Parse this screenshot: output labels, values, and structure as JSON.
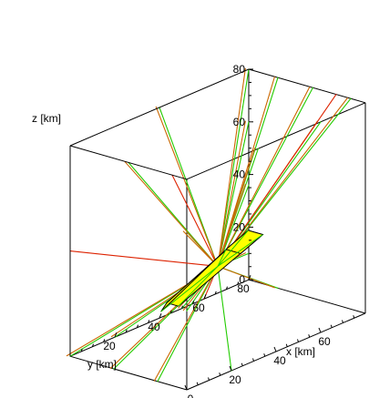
{
  "chart_data": {
    "type": "3d-line-plot",
    "title": "",
    "axes": {
      "x": {
        "label": "x [km]",
        "ticks": [
          "0",
          "20",
          "40",
          "60"
        ],
        "range": [
          0,
          80
        ]
      },
      "y": {
        "label": "y [km]",
        "ticks": [
          "20",
          "40",
          "60",
          "80"
        ],
        "range": [
          0,
          80
        ]
      },
      "z": {
        "label": "z [km]",
        "ticks": [
          "0",
          "20",
          "40",
          "60",
          "80"
        ],
        "range": [
          0,
          80
        ]
      }
    },
    "source_point": {
      "x": 40,
      "y": 40,
      "z": 26
    },
    "source_region": {
      "shape": "box",
      "fill_color": "#ffff00",
      "corners_xyz": [
        [
          72,
          18,
          26
        ],
        [
          72,
          24,
          22
        ],
        [
          18,
          62,
          26
        ],
        [
          12,
          62,
          26
        ],
        [
          18,
          68,
          20
        ]
      ]
    },
    "ray_colors": {
      "series_a": "#22dd00",
      "series_b": "#cc5500",
      "series_c": "#dd2200"
    },
    "rays": [
      {
        "color": "#22cc00",
        "end": [
          0,
          80,
          80
        ]
      },
      {
        "color": "#cc6600",
        "end": [
          0,
          80,
          80
        ]
      },
      {
        "color": "#22cc00",
        "end": [
          0,
          60,
          80
        ]
      },
      {
        "color": "#cc6600",
        "end": [
          0,
          60,
          80
        ]
      },
      {
        "color": "#22cc00",
        "end": [
          0,
          36,
          80
        ]
      },
      {
        "color": "#cc6600",
        "end": [
          0,
          36,
          80
        ]
      },
      {
        "color": "#22cc00",
        "end": [
          0,
          10,
          80
        ]
      },
      {
        "color": "#cc6600",
        "end": [
          0,
          10,
          80
        ]
      },
      {
        "color": "#22cc00",
        "end": [
          20,
          0,
          80
        ]
      },
      {
        "color": "#cc6600",
        "end": [
          20,
          0,
          80
        ]
      },
      {
        "color": "#22cc00",
        "end": [
          48,
          0,
          80
        ]
      },
      {
        "color": "#cc6600",
        "end": [
          48,
          0,
          80
        ]
      },
      {
        "color": "#22cc00",
        "end": [
          80,
          0,
          60
        ]
      },
      {
        "color": "#cc6600",
        "end": [
          80,
          0,
          60
        ]
      },
      {
        "color": "#22cc00",
        "end": [
          80,
          0,
          30
        ]
      },
      {
        "color": "#cc6600",
        "end": [
          80,
          0,
          30
        ]
      },
      {
        "color": "#22cc00",
        "end": [
          80,
          20,
          0
        ]
      },
      {
        "color": "#cc6600",
        "end": [
          80,
          20,
          0
        ]
      },
      {
        "color": "#22cc00",
        "end": [
          80,
          50,
          0
        ]
      },
      {
        "color": "#cc6600",
        "end": [
          80,
          50,
          0
        ]
      },
      {
        "color": "#22cc00",
        "end": [
          80,
          80,
          0
        ]
      },
      {
        "color": "#cc6600",
        "end": [
          80,
          80,
          0
        ]
      },
      {
        "color": "#22cc00",
        "end": [
          60,
          80,
          0
        ]
      },
      {
        "color": "#cc6600",
        "end": [
          60,
          80,
          0
        ]
      },
      {
        "color": "#22cc00",
        "end": [
          30,
          80,
          0
        ]
      },
      {
        "color": "#cc6600",
        "end": [
          30,
          80,
          0
        ]
      },
      {
        "color": "#22cc00",
        "end": [
          0,
          80,
          10
        ]
      },
      {
        "color": "#cc6600",
        "end": [
          0,
          80,
          10
        ]
      },
      {
        "color": "#22cc00",
        "end": [
          0,
          80,
          36
        ]
      },
      {
        "color": "#cc6600",
        "end": [
          0,
          80,
          36
        ]
      },
      {
        "color": "#22cc00",
        "end": [
          0,
          80,
          60
        ]
      },
      {
        "color": "#cc6600",
        "end": [
          0,
          80,
          60
        ]
      },
      {
        "color": "#22cc00",
        "end": [
          80,
          40,
          80
        ]
      },
      {
        "color": "#cc6600",
        "end": [
          80,
          40,
          80
        ]
      },
      {
        "color": "#22cc00",
        "end": [
          40,
          80,
          80
        ]
      },
      {
        "color": "#cc6600",
        "end": [
          40,
          80,
          80
        ]
      },
      {
        "color": "#22cc00",
        "end": [
          0,
          60,
          0
        ]
      },
      {
        "color": "#cc6600",
        "end": [
          0,
          60,
          0
        ]
      },
      {
        "color": "#22cc00",
        "end": [
          60,
          0,
          0
        ]
      },
      {
        "color": "#dd2200",
        "end": [
          20,
          80,
          0
        ]
      },
      {
        "color": "#dd2200",
        "end": [
          0,
          20,
          80
        ]
      },
      {
        "color": "#dd2200",
        "end": [
          80,
          10,
          80
        ]
      },
      {
        "color": "#dd2200",
        "end": [
          80,
          80,
          40
        ]
      }
    ]
  }
}
